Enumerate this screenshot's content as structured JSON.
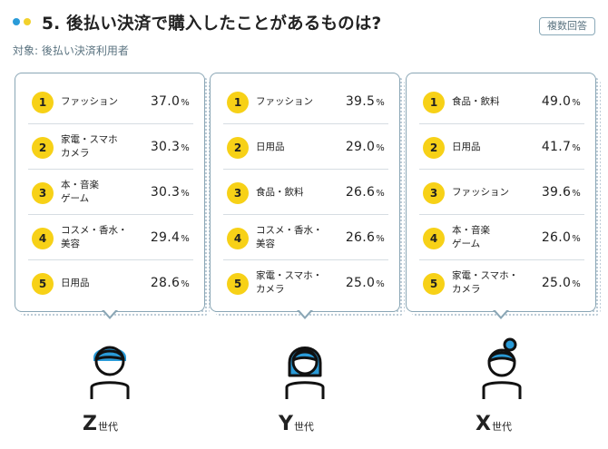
{
  "header": {
    "title": "5. 後払い決済で購入したことがあるものは?",
    "badge": "複数回答",
    "subtitle": "対象: 後払い決済利用者"
  },
  "colors": {
    "accent_blue": "#2a9bd8",
    "accent_yellow": "#f7d117",
    "border": "#8aa6b5"
  },
  "panels": [
    {
      "generation_letter": "Z",
      "generation_suffix": "世代",
      "person_icon": "person-short-hair-icon",
      "items": [
        {
          "rank": "1",
          "label": "ファッション",
          "value": "37.0",
          "unit": "%"
        },
        {
          "rank": "2",
          "label": "家電・スマホ\nカメラ",
          "value": "30.3",
          "unit": "%"
        },
        {
          "rank": "3",
          "label": "本・音楽\nゲーム",
          "value": "30.3",
          "unit": "%"
        },
        {
          "rank": "4",
          "label": "コスメ・香水・\n美容",
          "value": "29.4",
          "unit": "%"
        },
        {
          "rank": "5",
          "label": "日用品",
          "value": "28.6",
          "unit": "%"
        }
      ]
    },
    {
      "generation_letter": "Y",
      "generation_suffix": "世代",
      "person_icon": "person-long-hair-icon",
      "items": [
        {
          "rank": "1",
          "label": "ファッション",
          "value": "39.5",
          "unit": "%"
        },
        {
          "rank": "2",
          "label": "日用品",
          "value": "29.0",
          "unit": "%"
        },
        {
          "rank": "3",
          "label": "食品・飲料",
          "value": "26.6",
          "unit": "%"
        },
        {
          "rank": "4",
          "label": "コスメ・香水・\n美容",
          "value": "26.6",
          "unit": "%"
        },
        {
          "rank": "5",
          "label": "家電・スマホ・\nカメラ",
          "value": "25.0",
          "unit": "%"
        }
      ]
    },
    {
      "generation_letter": "X",
      "generation_suffix": "世代",
      "person_icon": "person-bun-hair-icon",
      "items": [
        {
          "rank": "1",
          "label": "食品・飲料",
          "value": "49.0",
          "unit": "%"
        },
        {
          "rank": "2",
          "label": "日用品",
          "value": "41.7",
          "unit": "%"
        },
        {
          "rank": "3",
          "label": "ファッション",
          "value": "39.6",
          "unit": "%"
        },
        {
          "rank": "4",
          "label": "本・音楽\nゲーム",
          "value": "26.0",
          "unit": "%"
        },
        {
          "rank": "5",
          "label": "家電・スマホ・\nカメラ",
          "value": "25.0",
          "unit": "%"
        }
      ]
    }
  ]
}
